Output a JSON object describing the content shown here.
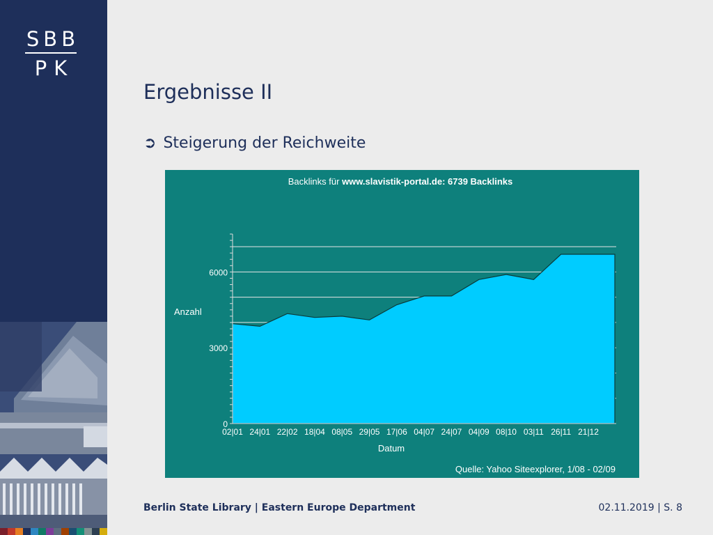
{
  "logo": {
    "line1": "SBB",
    "line2": "PK"
  },
  "slide": {
    "title": "Ergebnisse II",
    "bullet_icon": "circled-right-arrow-icon",
    "bullet_text": "Steigerung der Reichweite"
  },
  "footer": {
    "left": "Berlin State Library | Eastern Europe Department",
    "right": "02.11.2019 | S. 8"
  },
  "colors": {
    "sidebar": "#1e2f5a",
    "chart_background": "#0e807c",
    "chart_fill": "#00ccff",
    "text": "#1e2f5a"
  },
  "chart_data": {
    "type": "area",
    "title_prefix": "Backlinks für ",
    "title_bold": "www.slavistik-portal.de: 6739 Backlinks",
    "xlabel": "Datum",
    "ylabel": "Anzahl",
    "source": "Quelle: Yahoo Siteexplorer, 1/08 - 02/09",
    "yticks": [
      0,
      3000,
      6000
    ],
    "ylim": [
      0,
      7500
    ],
    "grid": true,
    "categories": [
      "02|01",
      "24|01",
      "22|02",
      "18|04",
      "08|05",
      "29|05",
      "17|06",
      "04|07",
      "24|07",
      "04|09",
      "08|10",
      "03|11",
      "26|11",
      "21|12"
    ],
    "values": [
      3950,
      3850,
      4350,
      4200,
      4250,
      4100,
      4700,
      5050,
      5050,
      5700,
      5900,
      5700,
      6700,
      6700
    ]
  }
}
